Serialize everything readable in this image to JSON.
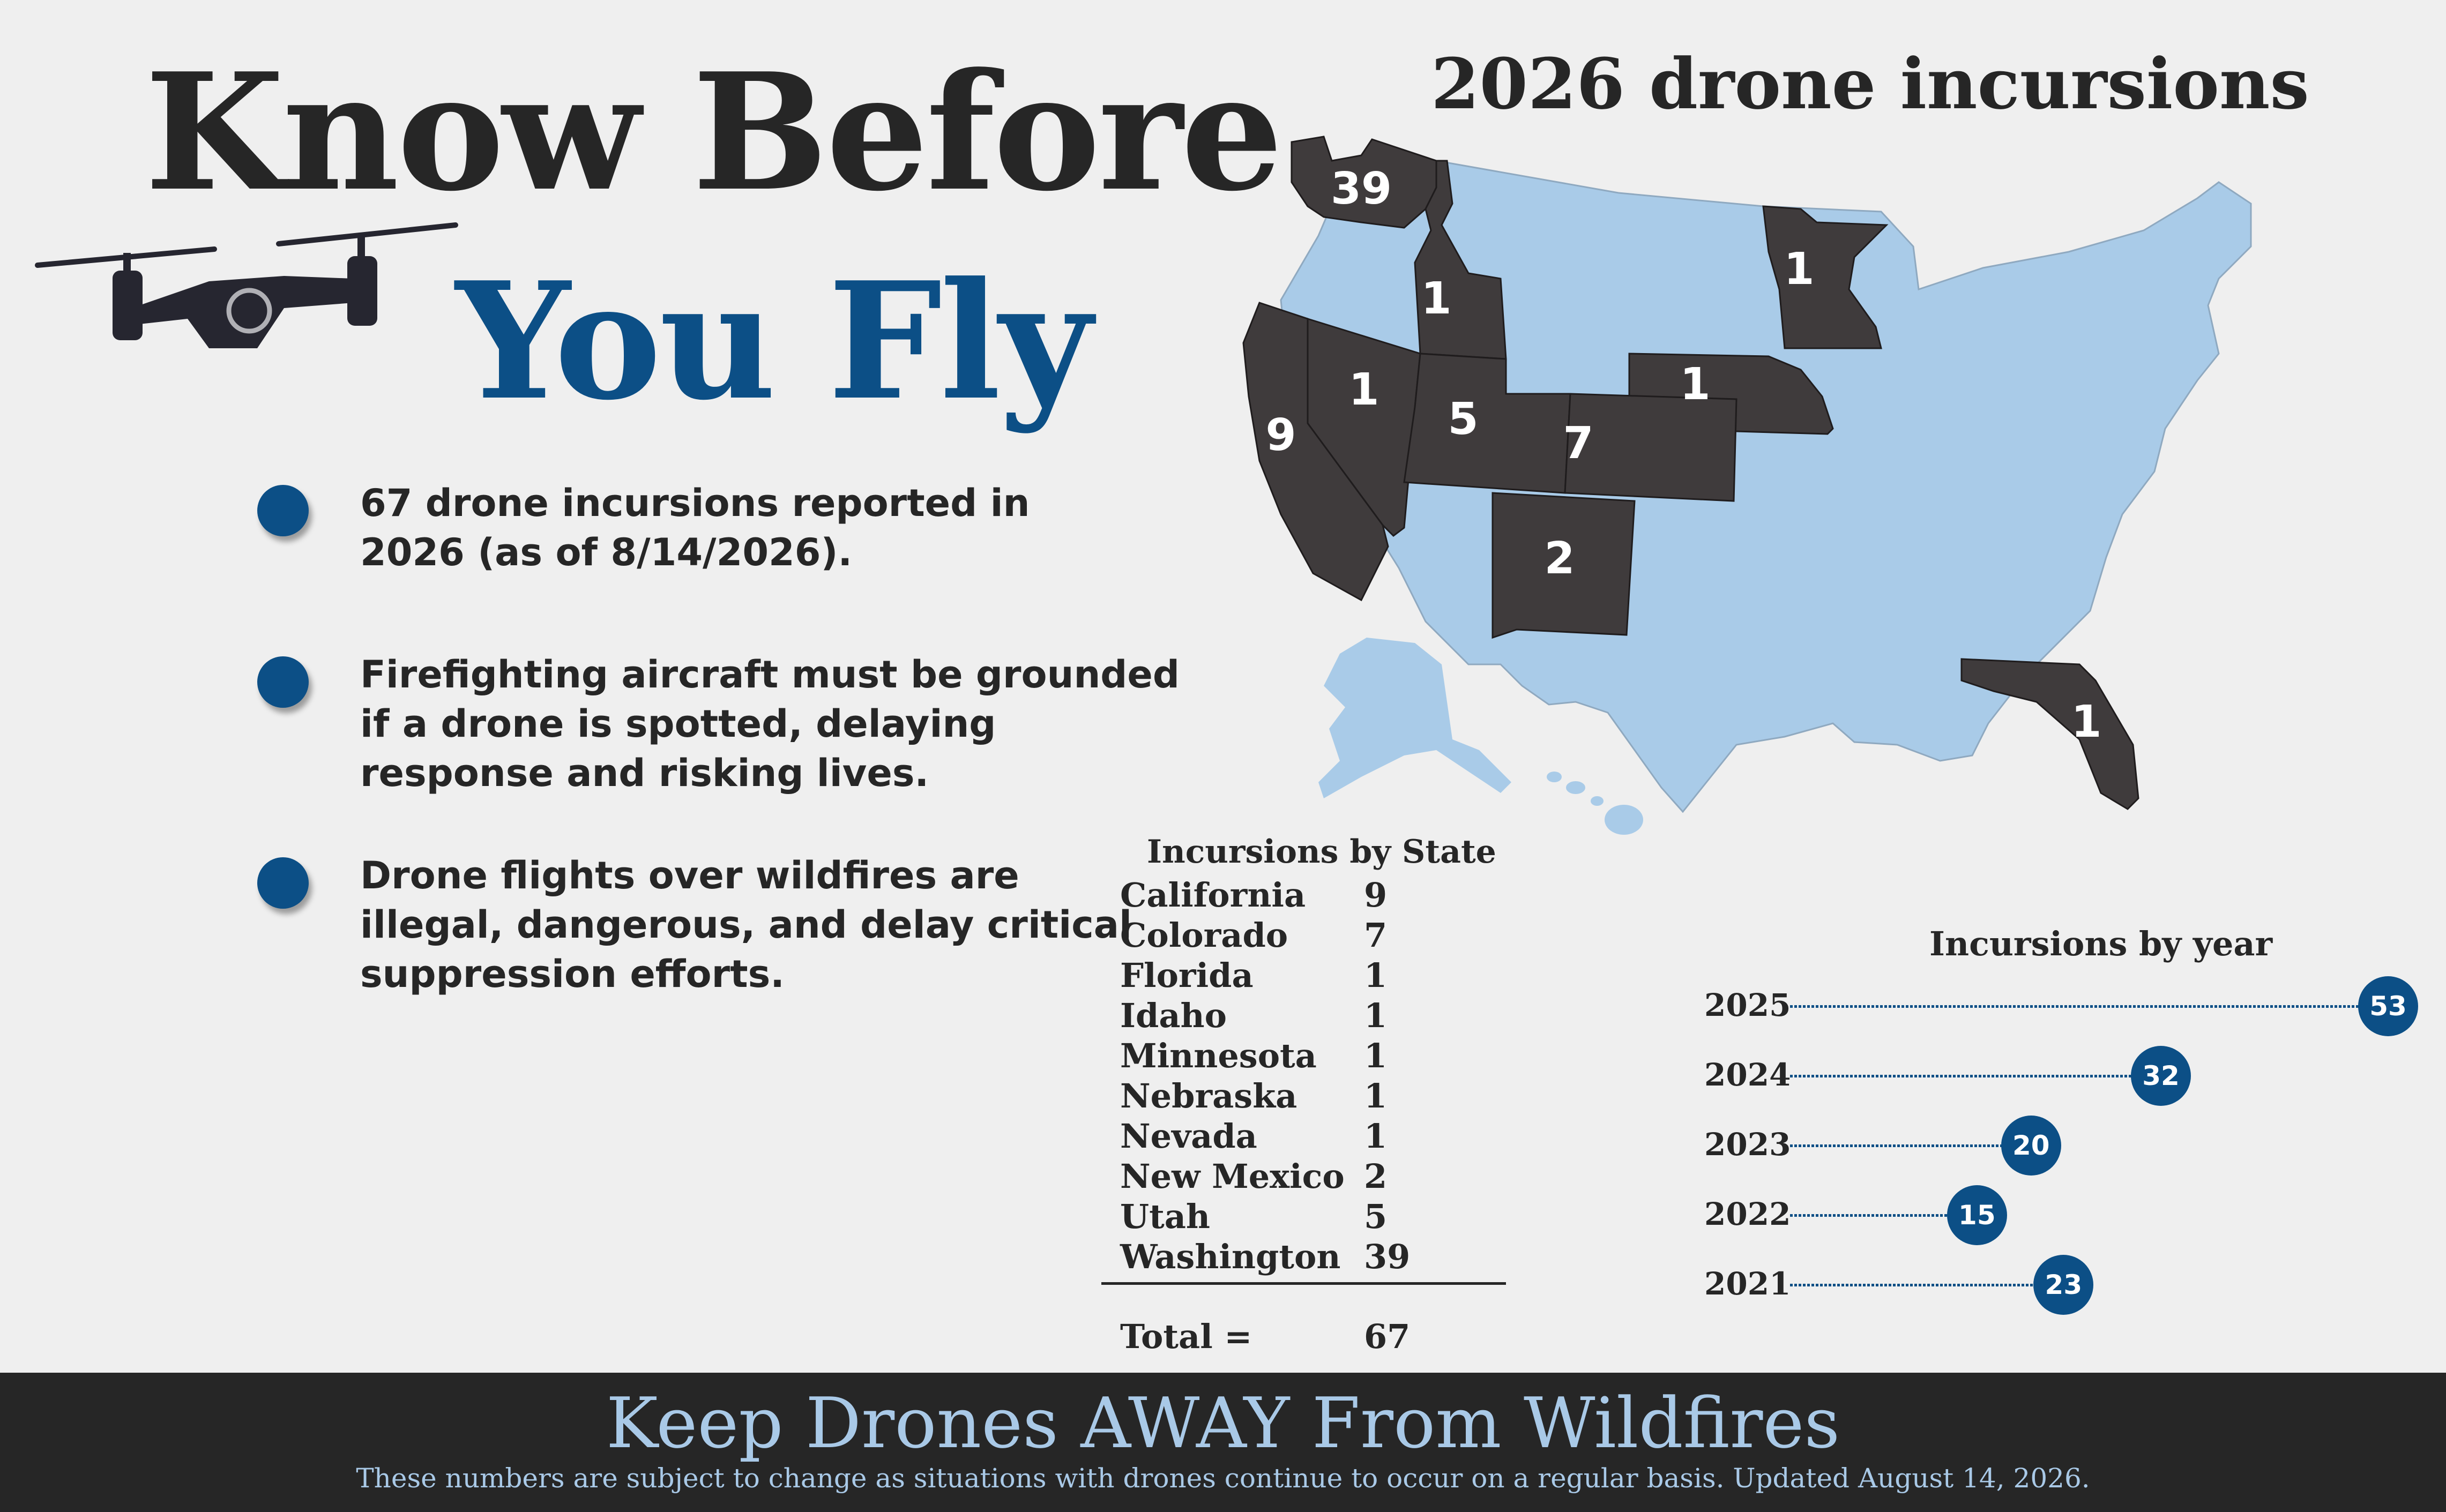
{
  "header": {
    "title_line1": "Know Before",
    "title_line2": "You Fly"
  },
  "icons": {
    "drone": "drone-icon",
    "bullet": "bullet-circle-icon"
  },
  "bullets": [
    {
      "line1": "67 drone incursions reported in",
      "line2": "2026 (as of 8/14/2026).",
      "line3": ""
    },
    {
      "line1": "Firefighting aircraft must be grounded",
      "line2": "if a drone is spotted, delaying",
      "line3": "response and risking lives."
    },
    {
      "line1": "Drone flights over wildfires are",
      "line2": "illegal, dangerous, and delay critical",
      "line3": "suppression efforts."
    }
  ],
  "map": {
    "title": "2026 drone incursions",
    "highlight_color": "#3f3b3c",
    "base_color": "#a9cbe8",
    "labels": {
      "WA": "39",
      "ID": "1",
      "MN": "1",
      "NE": "1",
      "NV": "1",
      "UT": "5",
      "CO": "7",
      "CA": "9",
      "NM": "2",
      "FL": "1"
    }
  },
  "state_table": {
    "title": "Incursions by State",
    "rows": [
      {
        "state": "California",
        "count": "9"
      },
      {
        "state": "Colorado",
        "count": "7"
      },
      {
        "state": "Florida",
        "count": "1"
      },
      {
        "state": "Idaho",
        "count": "1"
      },
      {
        "state": "Minnesota",
        "count": "1"
      },
      {
        "state": "Nebraska",
        "count": "1"
      },
      {
        "state": "Nevada",
        "count": "1"
      },
      {
        "state": "New Mexico",
        "count": "2"
      },
      {
        "state": "Utah",
        "count": "5"
      },
      {
        "state": "Washington",
        "count": "39"
      }
    ],
    "total_label": "Total =",
    "total_value": "67"
  },
  "chart_data": {
    "type": "bar",
    "title": "Incursions by year",
    "categories": [
      "2025",
      "2024",
      "2023",
      "2022",
      "2021"
    ],
    "values": [
      53,
      32,
      20,
      15,
      23
    ],
    "accent": "#0c4f86"
  },
  "footer": {
    "title": "Keep Drones AWAY From Wildfires",
    "note": "These numbers are subject to change as situations with drones continue to occur on a regular basis. Updated August 14, 2026."
  }
}
